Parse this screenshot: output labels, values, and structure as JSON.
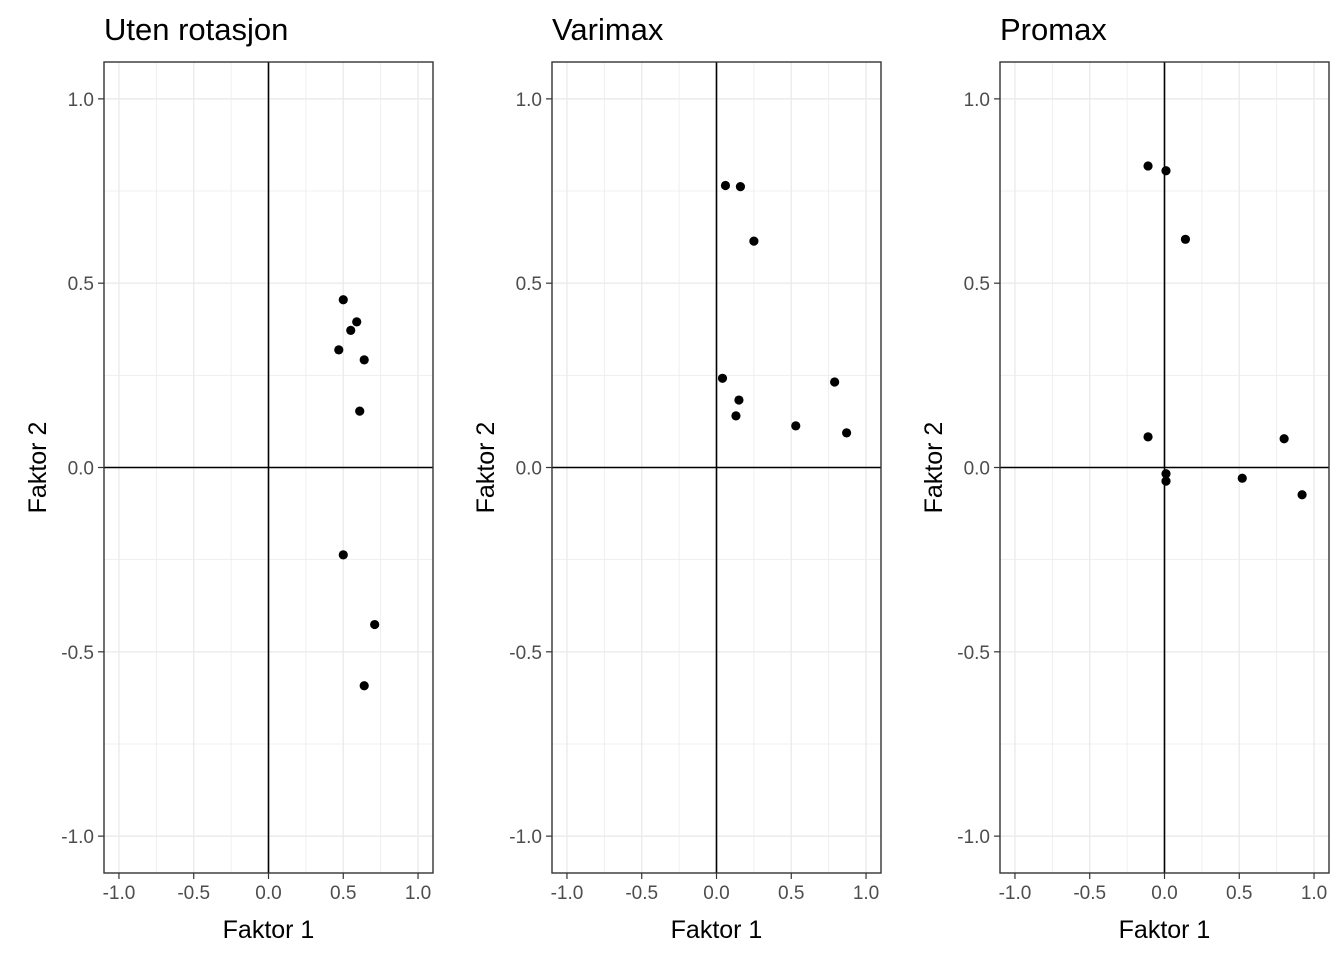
{
  "chart_data": [
    {
      "type": "scatter",
      "title": "Uten rotasjon",
      "xlabel": "Faktor 1",
      "ylabel": "Faktor 2",
      "xlim": [
        -1.1,
        1.1
      ],
      "ylim": [
        -1.1,
        1.1
      ],
      "x_ticks": [
        "-1.0",
        "-0.5",
        "0.0",
        "0.5",
        "1.0"
      ],
      "y_ticks": [
        "-1.0",
        "-0.5",
        "0.0",
        "0.5",
        "1.0"
      ],
      "grid": true,
      "reference_lines": {
        "x": 0,
        "y": 0
      },
      "points": [
        {
          "x": 0.5,
          "y": 0.455
        },
        {
          "x": 0.59,
          "y": 0.395
        },
        {
          "x": 0.55,
          "y": 0.372
        },
        {
          "x": 0.47,
          "y": 0.319
        },
        {
          "x": 0.64,
          "y": 0.292
        },
        {
          "x": 0.61,
          "y": 0.153
        },
        {
          "x": 0.5,
          "y": -0.237
        },
        {
          "x": 0.71,
          "y": -0.426
        },
        {
          "x": 0.64,
          "y": -0.592
        }
      ]
    },
    {
      "type": "scatter",
      "title": "Varimax",
      "xlabel": "Faktor 1",
      "ylabel": "Faktor 2",
      "xlim": [
        -1.1,
        1.1
      ],
      "ylim": [
        -1.1,
        1.1
      ],
      "x_ticks": [
        "-1.0",
        "-0.5",
        "0.0",
        "0.5",
        "1.0"
      ],
      "y_ticks": [
        "-1.0",
        "-0.5",
        "0.0",
        "0.5",
        "1.0"
      ],
      "grid": true,
      "reference_lines": {
        "x": 0,
        "y": 0
      },
      "points": [
        {
          "x": 0.06,
          "y": 0.765
        },
        {
          "x": 0.16,
          "y": 0.762
        },
        {
          "x": 0.25,
          "y": 0.614
        },
        {
          "x": 0.04,
          "y": 0.242
        },
        {
          "x": 0.79,
          "y": 0.232
        },
        {
          "x": 0.15,
          "y": 0.183
        },
        {
          "x": 0.13,
          "y": 0.14
        },
        {
          "x": 0.53,
          "y": 0.113
        },
        {
          "x": 0.87,
          "y": 0.094
        }
      ]
    },
    {
      "type": "scatter",
      "title": "Promax",
      "xlabel": "Faktor 1",
      "ylabel": "Faktor 2",
      "xlim": [
        -1.1,
        1.1
      ],
      "ylim": [
        -1.1,
        1.1
      ],
      "x_ticks": [
        "-1.0",
        "-0.5",
        "0.0",
        "0.5",
        "1.0"
      ],
      "y_ticks": [
        "-1.0",
        "-0.5",
        "0.0",
        "0.5",
        "1.0"
      ],
      "grid": true,
      "reference_lines": {
        "x": 0,
        "y": 0
      },
      "points": [
        {
          "x": -0.11,
          "y": 0.818
        },
        {
          "x": 0.01,
          "y": 0.805
        },
        {
          "x": 0.14,
          "y": 0.619
        },
        {
          "x": -0.11,
          "y": 0.083
        },
        {
          "x": 0.8,
          "y": 0.078
        },
        {
          "x": 0.01,
          "y": -0.017
        },
        {
          "x": 0.52,
          "y": -0.029
        },
        {
          "x": 0.01,
          "y": -0.037
        },
        {
          "x": 0.92,
          "y": -0.074
        }
      ]
    }
  ],
  "style": {
    "point_color": "#000000",
    "grid_color": "#ebebeb",
    "panel_border_color": "#333333",
    "reference_line_color": "#000000",
    "tick_label_color": "#4d4d4d"
  }
}
